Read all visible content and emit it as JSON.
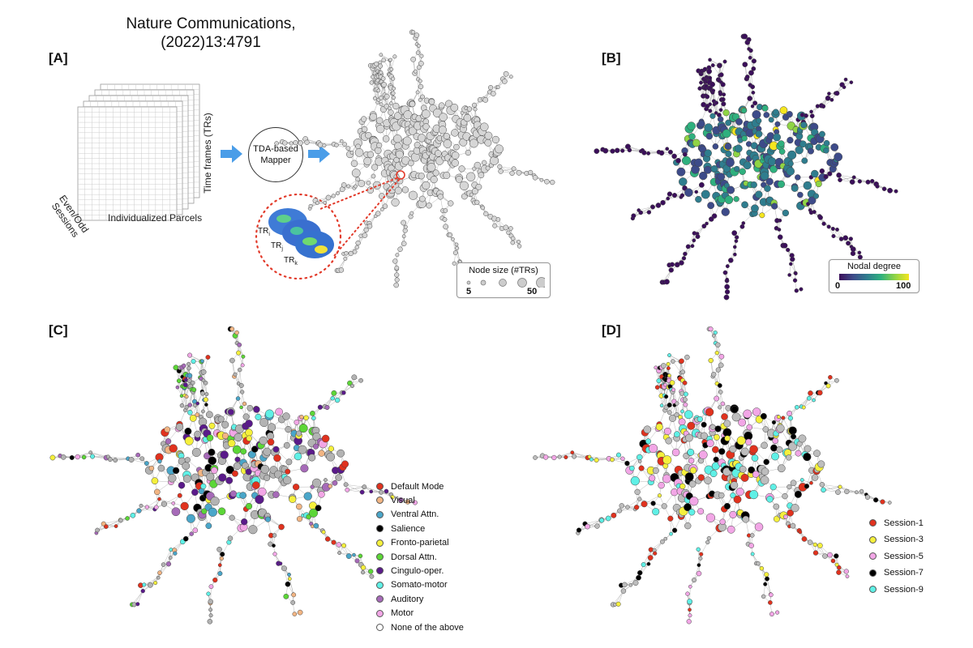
{
  "citation": {
    "line1": "Nature Communications,",
    "line2": "(2022)13:4791"
  },
  "panels": {
    "a": "[A]",
    "b": "[B]",
    "c": "[C]",
    "d": "[D]"
  },
  "panel_a": {
    "time_frames": "Time frames (TRs)",
    "sessions": "Even/Odd\nSessions",
    "parcels": "Individualized Parcels",
    "mapper": "TDA-based Mapper",
    "tr_i": "TR",
    "tr_i_sub": "i",
    "tr_j": "TR",
    "tr_j_sub": "j",
    "tr_k": "TR",
    "tr_k_sub": "k",
    "node_size_title": "Node size (#TRs)",
    "node_size_min": "5",
    "node_size_max": "50"
  },
  "panel_b": {
    "colorbar_title": "Nodal degree",
    "colorbar_min": "0",
    "colorbar_max": "100"
  },
  "panel_c": {
    "legend": [
      {
        "label": "Default Mode",
        "color": "#e0321e"
      },
      {
        "label": "Visual",
        "color": "#f2b583"
      },
      {
        "label": "Ventral Attn.",
        "color": "#4aa6c9"
      },
      {
        "label": "Salience",
        "color": "#000000"
      },
      {
        "label": "Fronto-parietal",
        "color": "#f5f03c"
      },
      {
        "label": "Dorsal Attn.",
        "color": "#5cd637"
      },
      {
        "label": "Cingulo-oper.",
        "color": "#5a1a8a"
      },
      {
        "label": "Somato-motor",
        "color": "#5ff0e6"
      },
      {
        "label": "Auditory",
        "color": "#a66ab8"
      },
      {
        "label": "Motor",
        "color": "#f2a6e6"
      },
      {
        "label": "None of the above",
        "color": "#ffffff"
      }
    ]
  },
  "panel_d": {
    "legend": [
      {
        "label": "Session-1",
        "color": "#e0321e"
      },
      {
        "label": "Session-3",
        "color": "#f5f03c"
      },
      {
        "label": "Session-5",
        "color": "#f2a6e6"
      },
      {
        "label": "Session-7",
        "color": "#000000"
      },
      {
        "label": "Session-9",
        "color": "#5ff0e6"
      }
    ]
  },
  "colors": {
    "arrow": "#4a9de8",
    "highlight": "#e23a2a",
    "gray_node": "#c8c8c8",
    "viridis_low": "#3b0f5a",
    "viridis_mid": "#2f7d8e",
    "viridis_high": "#f5e61f"
  }
}
